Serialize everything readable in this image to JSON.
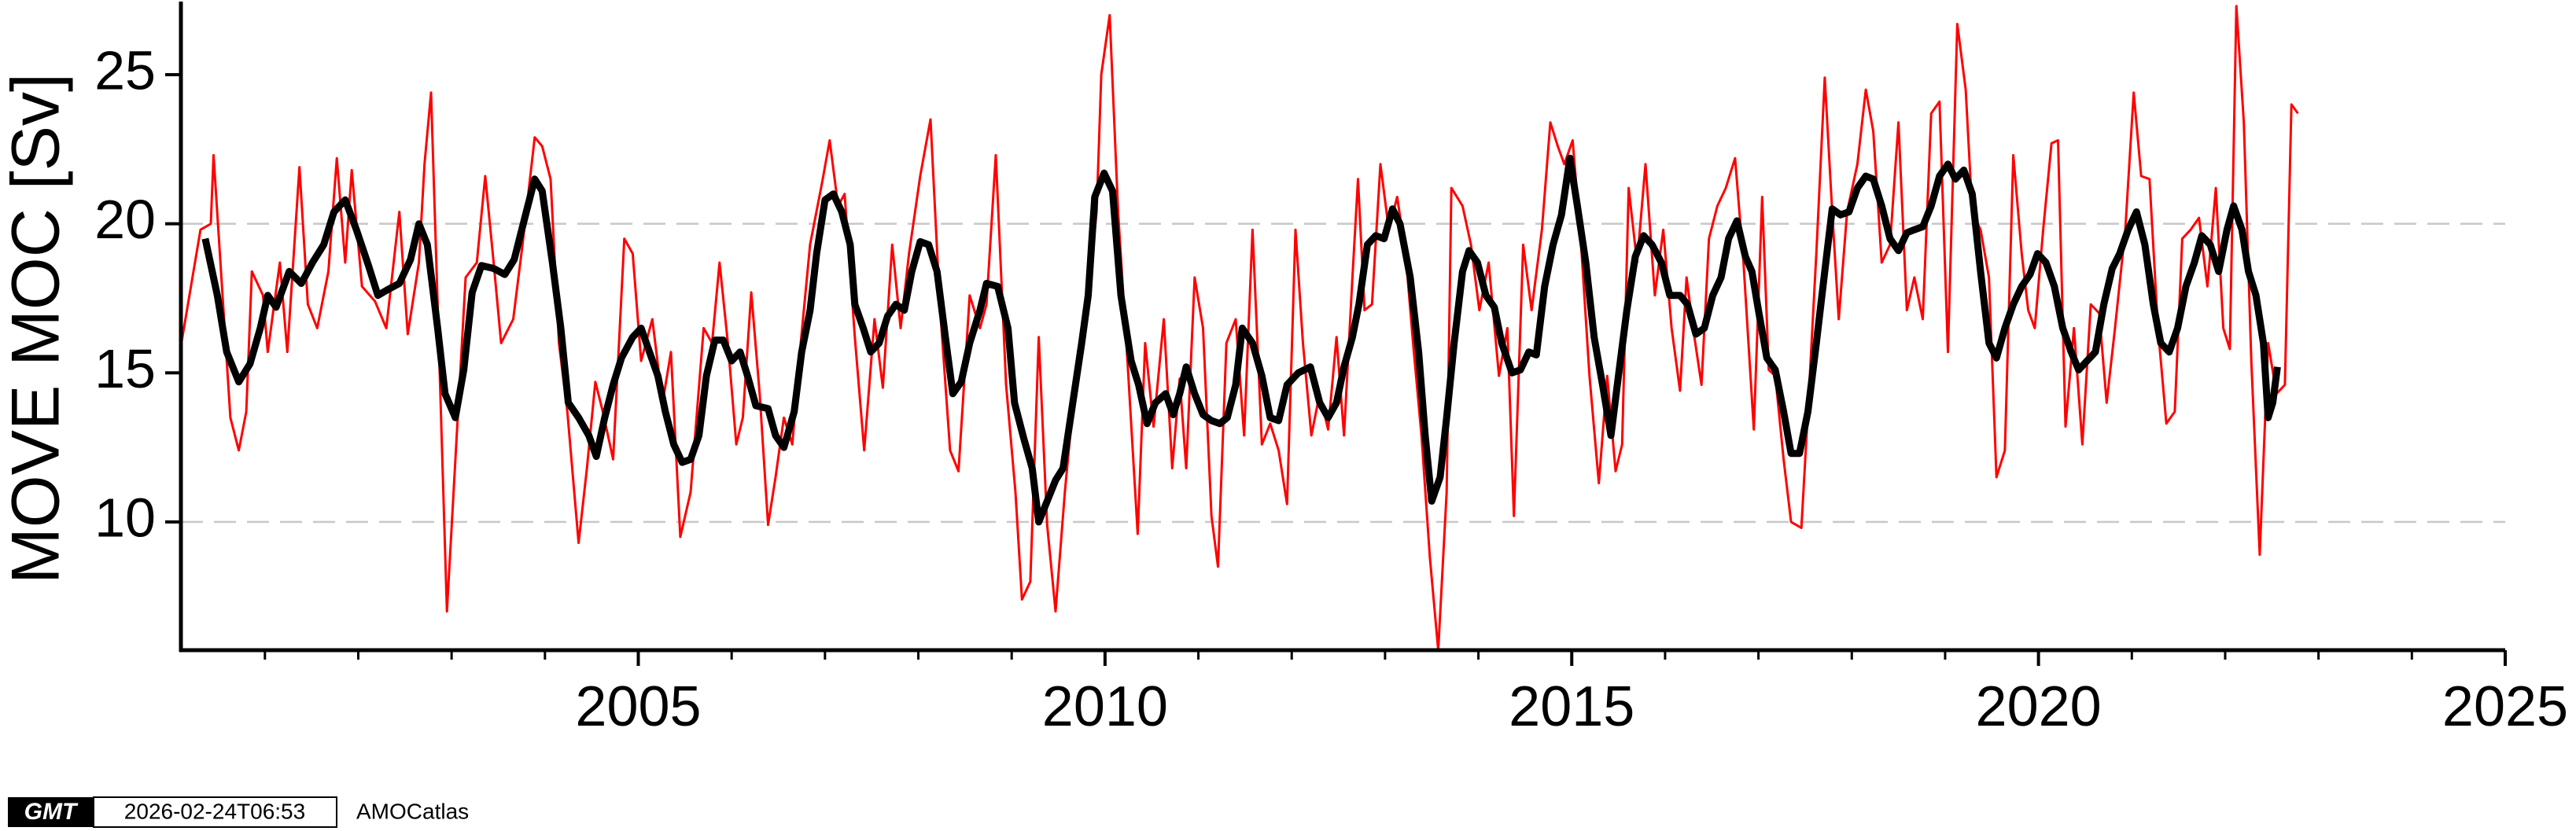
{
  "chart_data": {
    "type": "line",
    "ylabel": "MOVE MOC [Sv]",
    "xlim": [
      2000.1,
      2025
    ],
    "ylim": [
      5.7,
      27.4
    ],
    "xticks": [
      2005,
      2010,
      2015,
      2020,
      2025
    ],
    "xminorticks": [
      2001,
      2002,
      2003,
      2004,
      2006,
      2007,
      2008,
      2009,
      2011,
      2012,
      2013,
      2014,
      2016,
      2017,
      2018,
      2019,
      2021,
      2022,
      2023,
      2024
    ],
    "yticks": [
      10,
      15,
      20,
      25
    ],
    "grid_lines": [
      10,
      20
    ],
    "series": [
      {
        "color": "#ff0000",
        "width": 3,
        "x": [
          2000.1,
          2000.31,
          2000.42,
          2000.45,
          2000.63,
          2000.72,
          2000.8,
          2000.86,
          2000.98,
          2001.03,
          2001.16,
          2001.24,
          2001.37,
          2001.46,
          2001.56,
          2001.68,
          2001.77,
          2001.86,
          2001.93,
          2002.04,
          2002.18,
          2002.3,
          2002.44,
          2002.53,
          2002.65,
          2002.71,
          2002.78,
          2002.85,
          2002.95,
          2003.06,
          2003.15,
          2003.27,
          2003.36,
          2003.45,
          2003.53,
          2003.66,
          2003.76,
          2003.89,
          2003.97,
          2004.06,
          2004.15,
          2004.24,
          2004.36,
          2004.45,
          2004.54,
          2004.62,
          2004.73,
          2004.85,
          2004.94,
          2005.03,
          2005.15,
          2005.26,
          2005.35,
          2005.45,
          2005.56,
          2005.7,
          2005.79,
          2005.87,
          2005.96,
          2006.05,
          2006.12,
          2006.21,
          2006.3,
          2006.39,
          2006.47,
          2006.56,
          2006.65,
          2006.74,
          2006.84,
          2006.97,
          2007.05,
          2007.14,
          2007.21,
          2007.32,
          2007.42,
          2007.53,
          2007.62,
          2007.72,
          2007.81,
          2007.9,
          2008.02,
          2008.13,
          2008.23,
          2008.34,
          2008.43,
          2008.55,
          2008.66,
          2008.73,
          2008.83,
          2008.94,
          2009.04,
          2009.11,
          2009.2,
          2009.29,
          2009.38,
          2009.47,
          2009.57,
          2009.71,
          2009.82,
          2009.91,
          2009.96,
          2010.05,
          2010.14,
          2010.24,
          2010.35,
          2010.43,
          2010.52,
          2010.63,
          2010.72,
          2010.8,
          2010.87,
          2010.96,
          2011.05,
          2011.14,
          2011.21,
          2011.3,
          2011.4,
          2011.49,
          2011.58,
          2011.68,
          2011.77,
          2011.86,
          2011.95,
          2012.04,
          2012.12,
          2012.21,
          2012.3,
          2012.39,
          2012.48,
          2012.56,
          2012.65,
          2012.71,
          2012.78,
          2012.86,
          2012.95,
          2013.04,
          2013.13,
          2013.22,
          2013.3,
          2013.39,
          2013.48,
          2013.57,
          2013.66,
          2013.71,
          2013.83,
          2013.92,
          2014.01,
          2014.11,
          2014.22,
          2014.31,
          2014.38,
          2014.48,
          2014.57,
          2014.68,
          2014.77,
          2014.85,
          2014.92,
          2015.01,
          2015.1,
          2015.19,
          2015.29,
          2015.38,
          2015.47,
          2015.54,
          2015.61,
          2015.7,
          2015.79,
          2015.89,
          2015.98,
          2016.07,
          2016.16,
          2016.23,
          2016.3,
          2016.39,
          2016.47,
          2016.56,
          2016.65,
          2016.75,
          2016.84,
          2016.95,
          2017.04,
          2017.11,
          2017.18,
          2017.27,
          2017.35,
          2017.46,
          2017.53,
          2017.62,
          2017.71,
          2017.79,
          2017.86,
          2017.95,
          2018.06,
          2018.15,
          2018.23,
          2018.32,
          2018.41,
          2018.5,
          2018.59,
          2018.67,
          2018.76,
          2018.85,
          2018.94,
          2019.03,
          2019.13,
          2019.22,
          2019.29,
          2019.38,
          2019.47,
          2019.55,
          2019.64,
          2019.73,
          2019.82,
          2019.89,
          2019.96,
          2020.05,
          2020.14,
          2020.21,
          2020.29,
          2020.38,
          2020.47,
          2020.56,
          2020.65,
          2020.73,
          2020.82,
          2020.93,
          2021.02,
          2021.1,
          2021.19,
          2021.28,
          2021.37,
          2021.46,
          2021.54,
          2021.63,
          2021.72,
          2021.81,
          2021.9,
          2021.98,
          2022.05,
          2022.12,
          2022.2,
          2022.28,
          2022.37,
          2022.46,
          2022.55,
          2022.64,
          2022.71,
          2022.78
        ],
        "values": [
          15.9,
          19.8,
          20,
          22.3,
          13.5,
          12.4,
          13.7,
          18.4,
          17.6,
          15.7,
          18.7,
          15.7,
          21.9,
          17.3,
          16.5,
          18.4,
          22.2,
          18.7,
          21.8,
          17.9,
          17.4,
          16.5,
          20.4,
          16.3,
          18.7,
          22,
          24.4,
          17.3,
          7,
          13.2,
          18.2,
          18.7,
          21.6,
          18.7,
          16,
          16.8,
          19.3,
          22.9,
          22.6,
          21.5,
          16,
          13.7,
          9.3,
          11.8,
          14.7,
          13.7,
          12.1,
          19.5,
          19,
          15.4,
          16.8,
          14,
          15.7,
          9.5,
          11,
          16.5,
          16,
          18.7,
          16,
          12.6,
          13.5,
          17.7,
          14.3,
          9.9,
          11.5,
          13.5,
          12.6,
          16,
          19.3,
          21.4,
          22.8,
          20.6,
          21,
          16.2,
          12.4,
          16.8,
          14.5,
          19.3,
          16.5,
          19,
          21.6,
          23.5,
          17.3,
          12.4,
          11.7,
          17.6,
          16.5,
          17.3,
          22.3,
          14.6,
          11,
          7.4,
          8,
          16.2,
          9.9,
          7,
          11,
          15.7,
          17.6,
          20.4,
          25,
          27,
          20.4,
          15.4,
          9.6,
          16,
          13.2,
          16.8,
          11.8,
          14.8,
          11.8,
          18.2,
          16.5,
          10.2,
          8.5,
          16,
          16.8,
          12.9,
          19.8,
          12.6,
          13.3,
          12.4,
          10.6,
          19.8,
          16,
          12.9,
          14.3,
          13.1,
          16.2,
          12.9,
          18.2,
          21.5,
          17.1,
          17.3,
          22,
          19.8,
          20.9,
          19,
          16,
          12.9,
          8.8,
          5.7,
          11,
          21.2,
          20.6,
          19.3,
          17.1,
          18.7,
          14.9,
          16.5,
          10.2,
          19.3,
          17.1,
          19.8,
          23.4,
          22.6,
          22,
          22.8,
          19.3,
          14.9,
          11.3,
          14.9,
          11.7,
          12.6,
          21.2,
          18.7,
          22,
          17.6,
          19.8,
          16.5,
          14.4,
          18.2,
          16.5,
          14.6,
          19.5,
          20.6,
          21.2,
          22.2,
          18.7,
          13.1,
          20.9,
          15.1,
          14.9,
          12.1,
          10,
          9.8,
          13.7,
          19,
          24.9,
          20.4,
          16.8,
          20.4,
          22,
          24.5,
          23.1,
          18.7,
          19.3,
          23.4,
          17.1,
          18.2,
          16.8,
          23.7,
          24.1,
          15.7,
          26.7,
          24.5,
          20.4,
          19.8,
          18.2,
          11.5,
          12.4,
          22.3,
          19,
          17.1,
          16.5,
          19.8,
          22.7,
          22.8,
          13.2,
          16.5,
          12.6,
          17.3,
          17,
          14,
          16.5,
          19.8,
          24.4,
          21.6,
          21.5,
          16.5,
          13.3,
          13.7,
          19.5,
          19.8,
          20.2,
          17.9,
          21.2,
          16.5,
          15.8,
          27.3,
          23.4,
          15.4,
          8.9,
          16,
          14.3,
          14.6,
          24,
          23.7
        ]
      },
      {
        "color": "#000000",
        "width": 9,
        "x": [
          2000.36,
          2000.49,
          2000.59,
          2000.72,
          2000.84,
          2000.95,
          2001.03,
          2001.12,
          2001.26,
          2001.39,
          2001.51,
          2001.63,
          2001.74,
          2001.86,
          2001.98,
          2002.11,
          2002.21,
          2002.32,
          2002.44,
          2002.56,
          2002.65,
          2002.74,
          2002.85,
          2002.93,
          2003.04,
          2003.13,
          2003.22,
          2003.32,
          2003.45,
          2003.57,
          2003.67,
          2003.8,
          2003.89,
          2003.97,
          2004.08,
          2004.17,
          2004.25,
          2004.36,
          2004.47,
          2004.55,
          2004.64,
          2004.73,
          2004.82,
          2004.94,
          2005.03,
          2005.12,
          2005.21,
          2005.29,
          2005.38,
          2005.47,
          2005.56,
          2005.65,
          2005.73,
          2005.82,
          2005.91,
          2006.0,
          2006.09,
          2006.17,
          2006.26,
          2006.39,
          2006.47,
          2006.56,
          2006.67,
          2006.75,
          2006.84,
          2006.91,
          2007.0,
          2007.09,
          2007.18,
          2007.27,
          2007.32,
          2007.41,
          2007.49,
          2007.58,
          2007.67,
          2007.76,
          2007.85,
          2007.93,
          2008.02,
          2008.11,
          2008.2,
          2008.29,
          2008.37,
          2008.46,
          2008.55,
          2008.66,
          2008.73,
          2008.85,
          2008.96,
          2009.03,
          2009.13,
          2009.22,
          2009.29,
          2009.38,
          2009.47,
          2009.55,
          2009.64,
          2009.75,
          2009.82,
          2009.89,
          2009.99,
          2010.08,
          2010.17,
          2010.28,
          2010.36,
          2010.45,
          2010.54,
          2010.65,
          2010.73,
          2010.8,
          2010.87,
          2010.96,
          2011.05,
          2011.14,
          2011.23,
          2011.31,
          2011.4,
          2011.47,
          2011.58,
          2011.68,
          2011.77,
          2011.86,
          2011.95,
          2012.07,
          2012.2,
          2012.3,
          2012.39,
          2012.48,
          2012.56,
          2012.65,
          2012.72,
          2012.81,
          2012.9,
          2012.99,
          2013.08,
          2013.16,
          2013.27,
          2013.36,
          2013.43,
          2013.5,
          2013.59,
          2013.66,
          2013.74,
          2013.83,
          2013.9,
          2013.99,
          2014.08,
          2014.17,
          2014.25,
          2014.36,
          2014.45,
          2014.54,
          2014.62,
          2014.71,
          2014.8,
          2014.89,
          2014.98,
          2015.06,
          2015.15,
          2015.24,
          2015.33,
          2015.42,
          2015.5,
          2015.59,
          2015.68,
          2015.77,
          2015.86,
          2015.96,
          2016.05,
          2016.16,
          2016.24,
          2016.33,
          2016.42,
          2016.51,
          2016.6,
          2016.68,
          2016.77,
          2016.86,
          2016.93,
          2017.0,
          2017.09,
          2017.18,
          2017.27,
          2017.35,
          2017.44,
          2017.53,
          2017.62,
          2017.71,
          2017.79,
          2017.88,
          2017.97,
          2018.06,
          2018.15,
          2018.23,
          2018.32,
          2018.41,
          2018.5,
          2018.59,
          2018.67,
          2018.76,
          2018.85,
          2018.94,
          2019.03,
          2019.11,
          2019.2,
          2019.29,
          2019.38,
          2019.47,
          2019.55,
          2019.64,
          2019.73,
          2019.82,
          2019.91,
          2019.99,
          2020.08,
          2020.17,
          2020.26,
          2020.35,
          2020.43,
          2020.52,
          2020.61,
          2020.7,
          2020.79,
          2020.87,
          2020.96,
          2021.05,
          2021.14,
          2021.23,
          2021.31,
          2021.4,
          2021.49,
          2021.58,
          2021.67,
          2021.75,
          2021.84,
          2021.93,
          2022.02,
          2022.09,
          2022.18,
          2022.25,
          2022.33,
          2022.41,
          2022.46,
          2022.51,
          2022.56
        ],
        "values": [
          19.5,
          17.6,
          15.7,
          14.7,
          15.3,
          16.5,
          17.6,
          17.2,
          18.4,
          18,
          18.7,
          19.3,
          20.4,
          20.8,
          19.8,
          18.6,
          17.6,
          17.8,
          18,
          18.8,
          20,
          19.3,
          16.5,
          14.3,
          13.5,
          15.1,
          17.7,
          18.6,
          18.5,
          18.3,
          18.8,
          20.4,
          21.5,
          21.1,
          18.7,
          16.5,
          14,
          13.5,
          12.9,
          12.2,
          13.5,
          14.6,
          15.5,
          16.2,
          16.5,
          15.7,
          14.9,
          13.7,
          12.6,
          12,
          12.1,
          12.9,
          14.9,
          16.1,
          16.1,
          15.4,
          15.7,
          14.9,
          13.9,
          13.8,
          12.9,
          12.5,
          13.7,
          15.7,
          17.1,
          19,
          20.8,
          21,
          20.4,
          19.3,
          17.3,
          16.5,
          15.7,
          16,
          16.9,
          17.3,
          17.1,
          18.4,
          19.4,
          19.3,
          18.4,
          16.2,
          14.3,
          14.7,
          16,
          17.1,
          18,
          17.9,
          16.5,
          14,
          12.8,
          11.8,
          10,
          10.7,
          11.4,
          11.8,
          13.7,
          16,
          17.6,
          20.9,
          21.7,
          21.1,
          17.6,
          15.4,
          14.6,
          13.3,
          14,
          14.3,
          13.6,
          14.3,
          15.2,
          14.3,
          13.6,
          13.4,
          13.3,
          13.5,
          14.6,
          16.5,
          16,
          14.9,
          13.5,
          13.4,
          14.6,
          15,
          15.2,
          14,
          13.5,
          14,
          15.2,
          16.2,
          17.3,
          19.3,
          19.6,
          19.5,
          20.5,
          20,
          18.2,
          15.7,
          12.9,
          10.7,
          11.5,
          13.5,
          16,
          18.4,
          19.1,
          18.7,
          17.6,
          17.2,
          16,
          15,
          15.1,
          15.7,
          15.6,
          17.9,
          19.3,
          20.3,
          22.2,
          20.6,
          18.7,
          16.2,
          14.6,
          12.9,
          14.9,
          17.1,
          18.9,
          19.6,
          19.3,
          18.7,
          17.6,
          17.6,
          17.3,
          16.3,
          16.5,
          17.6,
          18.2,
          19.5,
          20.1,
          18.9,
          18.4,
          17.1,
          15.5,
          15.1,
          13.7,
          12.3,
          12.3,
          13.7,
          16,
          18.4,
          20.5,
          20.3,
          20.4,
          21.2,
          21.6,
          21.5,
          20.6,
          19.5,
          19.1,
          19.7,
          19.8,
          19.9,
          20.6,
          21.6,
          22,
          21.5,
          21.8,
          21,
          18.4,
          16,
          15.5,
          16.5,
          17.3,
          17.9,
          18.3,
          19,
          18.7,
          17.9,
          16.5,
          15.7,
          15.1,
          15.4,
          15.7,
          17.3,
          18.5,
          19,
          19.8,
          20.4,
          19.3,
          17.3,
          16,
          15.7,
          16.5,
          17.9,
          18.7,
          19.6,
          19.3,
          18.4,
          19.8,
          20.6,
          19.8,
          18.4,
          17.6,
          16,
          13.5,
          14,
          15.2
        ]
      }
    ]
  },
  "footer": {
    "logo": "GMT",
    "timestamp": "2026-02-24T06:53",
    "source": "AMOCatlas"
  }
}
